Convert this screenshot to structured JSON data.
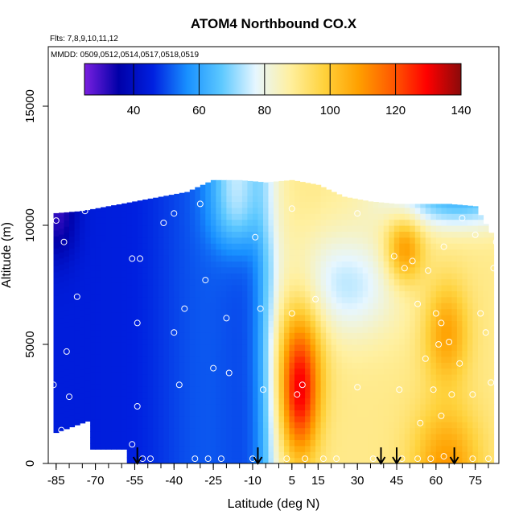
{
  "chart_data": {
    "type": "heatmap",
    "title": "ATOM4 Northbound CO.X",
    "flights_note": "Flts: 7,8,9,10,11,12",
    "dates_note": "MMDD: 0509,0512,0514,0517,0518,0519",
    "xlabel": "Latitude (deg N)",
    "ylabel": "Altitude (m)",
    "xlim": [
      -88,
      84
    ],
    "ylim": [
      0,
      17500
    ],
    "x_ticks": [
      -85,
      -70,
      -55,
      -40,
      -25,
      -10,
      5,
      15,
      30,
      45,
      60,
      75
    ],
    "y_ticks": [
      0,
      5000,
      10000,
      15000
    ],
    "colorbar": {
      "min": 25,
      "max": 140,
      "ticks": [
        40,
        60,
        80,
        100,
        120,
        140
      ],
      "colors": [
        "#7a1fe0",
        "#0000a8",
        "#0020e0",
        "#1890ff",
        "#5cc8ff",
        "#e6f6ff",
        "#fff0a0",
        "#ffd23c",
        "#ffa000",
        "#ff5a00",
        "#ff0000",
        "#8a0a0a"
      ]
    },
    "profile_markers_lat": [
      -54,
      -8,
      39,
      45,
      67
    ],
    "envelope": {
      "lat": [
        -86,
        -75,
        -65,
        -55,
        -45,
        -35,
        -25,
        -15,
        -5,
        5,
        15,
        25,
        35,
        45,
        55,
        65,
        75,
        82
      ],
      "alt_top": [
        10500,
        10600,
        10800,
        11000,
        11200,
        11400,
        11900,
        11900,
        11800,
        11900,
        11700,
        11200,
        11000,
        10900,
        10900,
        10900,
        10800,
        9500
      ]
    },
    "sample_points": [
      [
        -85,
        10200
      ],
      [
        -82,
        9300
      ],
      [
        -74,
        10600
      ],
      [
        -77,
        7000
      ],
      [
        -81,
        4700
      ],
      [
        -80,
        2800
      ],
      [
        -83,
        1400
      ],
      [
        -86,
        3300
      ],
      [
        -56,
        8600
      ],
      [
        -53,
        8600
      ],
      [
        -54,
        5900
      ],
      [
        -54,
        2400
      ],
      [
        -56,
        800
      ],
      [
        -52,
        200
      ],
      [
        -49,
        200
      ],
      [
        -44,
        10100
      ],
      [
        -40,
        10500
      ],
      [
        -30,
        10900
      ],
      [
        -36,
        6500
      ],
      [
        -40,
        5500
      ],
      [
        -38,
        3300
      ],
      [
        -28,
        7700
      ],
      [
        -25,
        4000
      ],
      [
        -19,
        3800
      ],
      [
        -20,
        6100
      ],
      [
        -32,
        200
      ],
      [
        -27,
        200
      ],
      [
        -22,
        200
      ],
      [
        -9,
        9500
      ],
      [
        -7,
        6500
      ],
      [
        -6,
        3100
      ],
      [
        -10,
        200
      ],
      [
        5,
        10700
      ],
      [
        5,
        6300
      ],
      [
        7,
        2900
      ],
      [
        9,
        3300
      ],
      [
        10,
        200
      ],
      [
        14,
        6900
      ],
      [
        17,
        200
      ],
      [
        22,
        200
      ],
      [
        30,
        10500
      ],
      [
        30,
        3200
      ],
      [
        44,
        8700
      ],
      [
        48,
        8200
      ],
      [
        51,
        8500
      ],
      [
        46,
        3100
      ],
      [
        53,
        6700
      ],
      [
        57,
        8100
      ],
      [
        54,
        1700
      ],
      [
        56,
        4400
      ],
      [
        59,
        3100
      ],
      [
        60,
        6300
      ],
      [
        61,
        5000
      ],
      [
        62,
        5900
      ],
      [
        63,
        9100
      ],
      [
        62,
        2000
      ],
      [
        63,
        300
      ],
      [
        65,
        5100
      ],
      [
        66,
        2900
      ],
      [
        69,
        4200
      ],
      [
        70,
        10300
      ],
      [
        74,
        2900
      ],
      [
        77,
        6300
      ],
      [
        75,
        9600
      ],
      [
        81,
        3400
      ],
      [
        79,
        5500
      ],
      [
        80,
        10600
      ],
      [
        82,
        8200
      ],
      [
        83,
        9300
      ],
      [
        84,
        6400
      ],
      [
        74,
        200
      ],
      [
        80,
        200
      ],
      [
        53,
        200
      ],
      [
        58,
        200
      ],
      [
        3,
        200
      ],
      [
        36,
        200
      ],
      [
        47,
        200
      ]
    ]
  }
}
